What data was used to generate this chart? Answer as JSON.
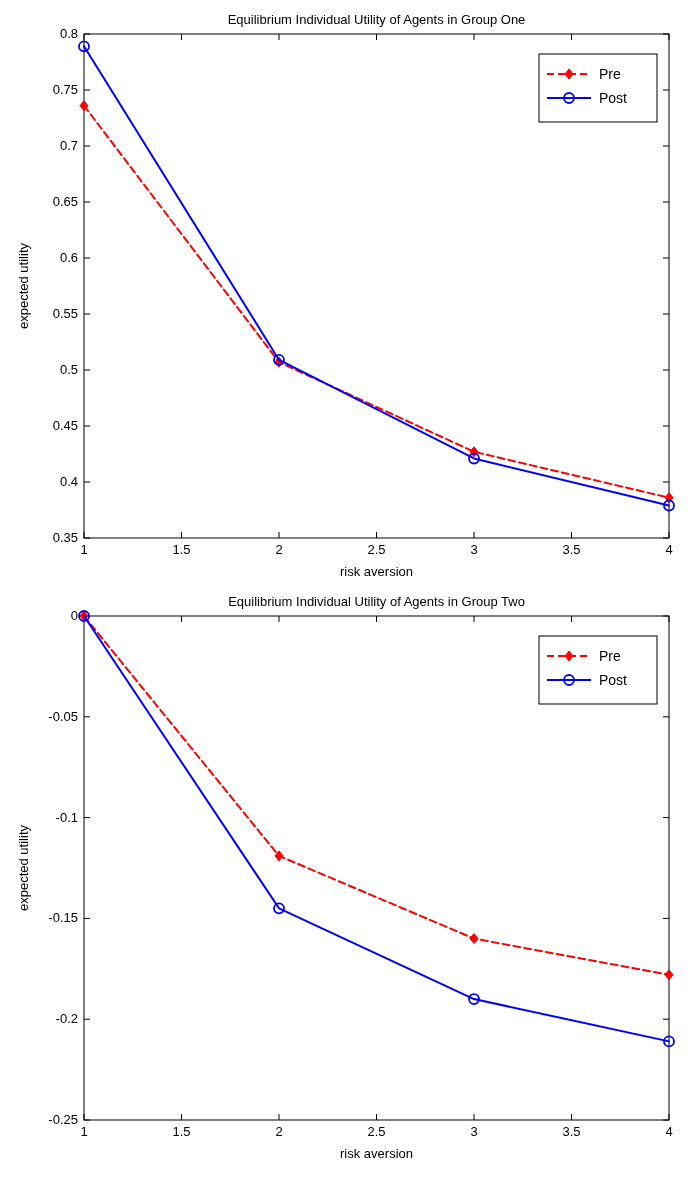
{
  "chart_data": [
    {
      "type": "line",
      "title": "Equilibrium Individual Utility of Agents in Group One",
      "xlabel": "risk aversion",
      "ylabel": "expected utility",
      "x": [
        1,
        2,
        3,
        4
      ],
      "xlim": [
        1,
        4
      ],
      "xticks": [
        1,
        1.5,
        2,
        2.5,
        3,
        3.5,
        4
      ],
      "ylim": [
        0.35,
        0.8
      ],
      "yticks": [
        0.35,
        0.4,
        0.45,
        0.5,
        0.55,
        0.6,
        0.65,
        0.7,
        0.75,
        0.8
      ],
      "legend": "top right",
      "grid": false,
      "series": [
        {
          "name": "Pre",
          "color": "#ff0000",
          "values": [
            0.736,
            0.507,
            0.427,
            0.386
          ],
          "line_style": "dashed",
          "marker": "diamond"
        },
        {
          "name": "Post",
          "color": "#0000ff",
          "values": [
            0.789,
            0.509,
            0.421,
            0.379
          ],
          "line_style": "solid",
          "marker": "circle"
        }
      ]
    },
    {
      "type": "line",
      "title": "Equilibrium Individual Utility of Agents in Group Two",
      "xlabel": "risk aversion",
      "ylabel": "expected utility",
      "x": [
        1,
        2,
        3,
        4
      ],
      "xlim": [
        1,
        4
      ],
      "xticks": [
        1,
        1.5,
        2,
        2.5,
        3,
        3.5,
        4
      ],
      "ylim": [
        -0.25,
        0
      ],
      "yticks": [
        -0.25,
        -0.2,
        -0.15,
        -0.1,
        -0.05,
        0
      ],
      "legend": "top right",
      "grid": false,
      "series": [
        {
          "name": "Pre",
          "color": "#ff0000",
          "values": [
            0,
            -0.119,
            -0.16,
            -0.178
          ],
          "line_style": "dashed",
          "marker": "diamond"
        },
        {
          "name": "Post",
          "color": "#0000ff",
          "values": [
            0,
            -0.145,
            -0.19,
            -0.211
          ],
          "line_style": "solid",
          "marker": "circle"
        }
      ]
    }
  ]
}
